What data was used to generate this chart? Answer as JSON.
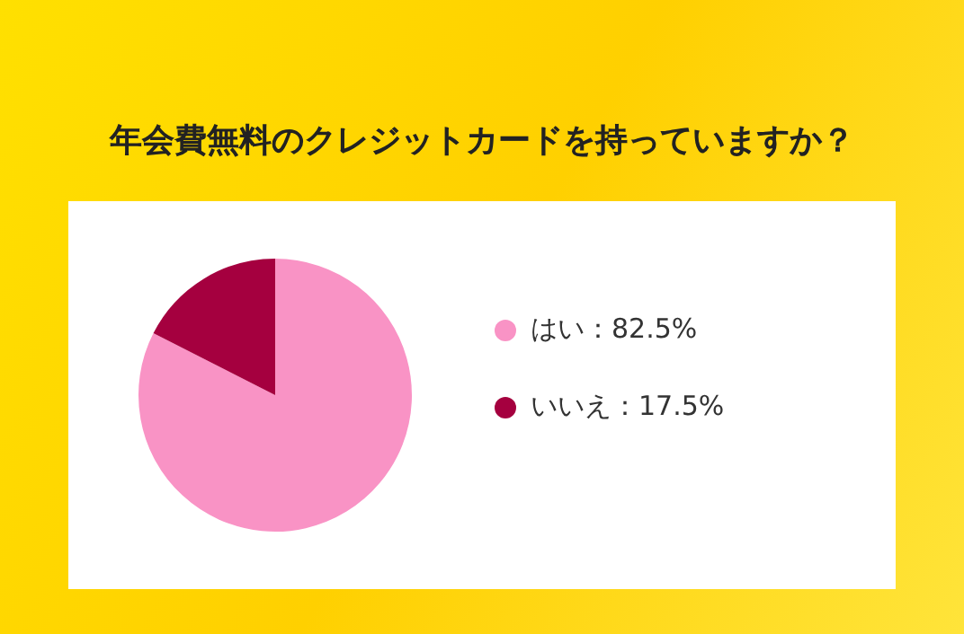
{
  "chart_data": {
    "type": "pie",
    "title": "年会費無料のクレジットカードを持っていますか？",
    "categories": [
      "はい",
      "いいえ"
    ],
    "values": [
      82.5,
      17.5
    ],
    "value_labels": [
      "82.5%",
      "17.5%"
    ],
    "colors": [
      "#f993c5",
      "#a5003f"
    ],
    "legend": "right"
  }
}
